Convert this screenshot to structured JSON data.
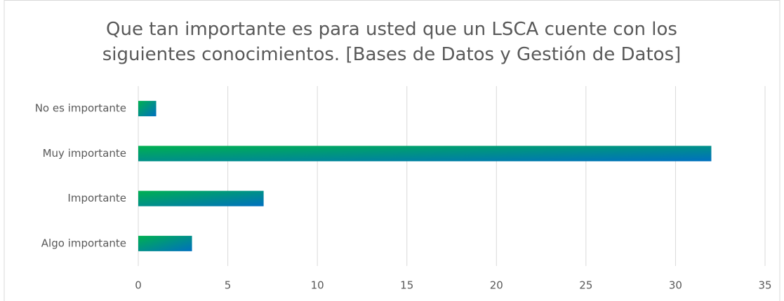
{
  "chart_data": {
    "type": "barh",
    "title": "Que tan importante es para usted que un LSCA cuente con los siguientes conocimientos. [Bases de Datos y Gestión de Datos]",
    "categories": [
      "No es importante",
      "Muy importante",
      "Importante",
      "Algo importante"
    ],
    "values": [
      1,
      32,
      7,
      3
    ],
    "colors": [
      "#00b050",
      "#0070c0"
    ],
    "xlim": [
      0,
      35
    ],
    "xticks": [
      0,
      5,
      10,
      15,
      20,
      25,
      30,
      35
    ],
    "grid": true
  }
}
